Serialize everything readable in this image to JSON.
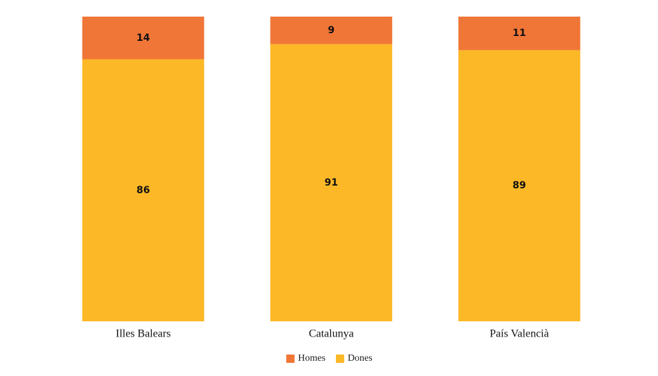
{
  "chart_data": {
    "type": "stacked_bar",
    "categories": [
      "Illes Balears",
      "Catalunya",
      "País Valencià"
    ],
    "series": [
      {
        "name": "Dones",
        "color": "#fdb827",
        "values": [
          86,
          91,
          89
        ]
      },
      {
        "name": "Homes",
        "color": "#f07637",
        "values": [
          14,
          9,
          11
        ]
      }
    ],
    "legend": "bottom"
  }
}
